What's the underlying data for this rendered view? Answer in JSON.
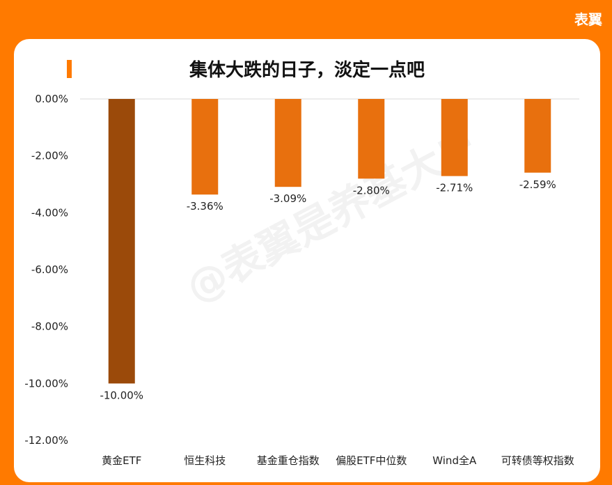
{
  "brand": "表翼",
  "title": "集体大跌的日子，淡定一点吧",
  "watermark": "@表翼是养基大户",
  "colors": {
    "background": "#ff7a00",
    "highlight_bar": "#9b4a0a",
    "bar": "#e8700e",
    "axis_text": "#222222",
    "gridline": "#d9d9d9"
  },
  "chart_data": {
    "type": "bar",
    "categories": [
      "黄金ETF",
      "恒生科技",
      "基金重仓指数",
      "偏股ETF中位数",
      "Wind全A",
      "可转债等权指数"
    ],
    "values": [
      -10.0,
      -3.36,
      -3.09,
      -2.8,
      -2.71,
      -2.59
    ],
    "data_labels": [
      "-10.00%",
      "-3.36%",
      "-3.09%",
      "-2.80%",
      "-2.71%",
      "-2.59%"
    ],
    "highlight_index": 0,
    "ylim": [
      -12,
      0
    ],
    "yticks": [
      0,
      -2,
      -4,
      -6,
      -8,
      -10,
      -12
    ],
    "ytick_labels": [
      "0.00%",
      "-2.00%",
      "-4.00%",
      "-6.00%",
      "-8.00%",
      "-10.00%",
      "-12.00%"
    ],
    "title": "集体大跌的日子，淡定一点吧",
    "xlabel": "",
    "ylabel": "",
    "grid": false,
    "legend": "none"
  }
}
